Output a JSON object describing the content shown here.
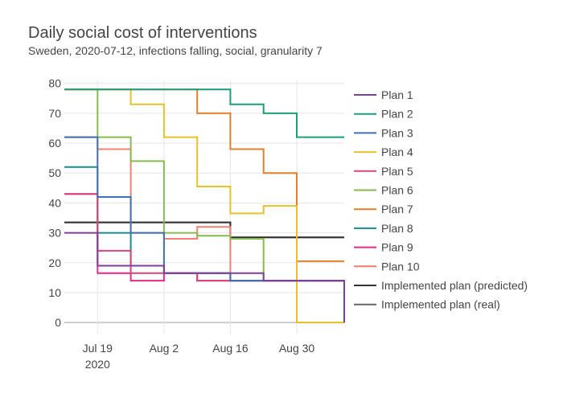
{
  "chart_data": {
    "type": "line",
    "line_shape": "step",
    "title": "Daily social cost of interventions",
    "subtitle": "Sweden, 2020-07-12, infections falling, social, granularity 7",
    "xlabel": "",
    "ylabel": "",
    "xlim": [
      "2020-07-12",
      "2020-09-09"
    ],
    "ylim": [
      -4,
      81
    ],
    "x_ticks": [
      {
        "date": "2020-07-19",
        "label": "Jul 19",
        "sublabel": "2020"
      },
      {
        "date": "2020-08-02",
        "label": "Aug 2",
        "sublabel": ""
      },
      {
        "date": "2020-08-16",
        "label": "Aug 16",
        "sublabel": ""
      },
      {
        "date": "2020-08-30",
        "label": "Aug 30",
        "sublabel": ""
      }
    ],
    "y_ticks": [
      0,
      10,
      20,
      30,
      40,
      50,
      60,
      70,
      80
    ],
    "grid": true,
    "legend_position": "right",
    "change_dates": [
      "2020-07-12",
      "2020-07-19",
      "2020-07-26",
      "2020-08-02",
      "2020-08-09",
      "2020-08-16",
      "2020-08-23",
      "2020-08-30",
      "2020-09-09"
    ],
    "series": [
      {
        "name": "Plan 1",
        "color": "#7f3f98",
        "values": [
          30,
          19,
          19,
          16.5,
          16.5,
          16.5,
          14,
          14,
          0
        ]
      },
      {
        "name": "Plan 2",
        "color": "#1b9e77",
        "values": [
          78,
          78,
          78,
          78,
          78,
          73,
          70,
          62,
          62
        ]
      },
      {
        "name": "Plan 3",
        "color": "#3f6fb5",
        "values": [
          62,
          42,
          30,
          16.5,
          16.5,
          14,
          14,
          14,
          0
        ]
      },
      {
        "name": "Plan 4",
        "color": "#e6c229",
        "values": [
          78,
          78,
          73,
          62,
          45.5,
          36.5,
          39,
          0,
          0
        ]
      },
      {
        "name": "Plan 5",
        "color": "#d6457a",
        "values": [
          43,
          24,
          16.5,
          16.5,
          14,
          14,
          14,
          14,
          0
        ]
      },
      {
        "name": "Plan 6",
        "color": "#86bc4e",
        "values": [
          78,
          62,
          54,
          30,
          29,
          28,
          14,
          14,
          0
        ]
      },
      {
        "name": "Plan 7",
        "color": "#e0802c",
        "values": [
          78,
          78,
          78,
          78,
          70,
          58,
          50,
          20.5,
          20.5
        ]
      },
      {
        "name": "Plan 8",
        "color": "#1a8c8c",
        "values": [
          52,
          30,
          19,
          16.5,
          16.5,
          14,
          14,
          14,
          0
        ]
      },
      {
        "name": "Plan 9",
        "color": "#e7298a",
        "values": [
          43,
          16.5,
          14,
          16.5,
          14,
          14,
          14,
          14,
          0
        ]
      },
      {
        "name": "Plan 10",
        "color": "#f47f72",
        "values": [
          62,
          58,
          30,
          28,
          32,
          14,
          14,
          14,
          0
        ]
      },
      {
        "name": "Implemented plan (predicted)",
        "color": "#333333",
        "values": [
          33.5,
          33.5,
          33.5,
          33.5,
          33.5,
          28.5,
          28.5,
          28.5,
          28.5
        ]
      },
      {
        "name": "Implemented plan (real)",
        "color": "#666666",
        "values": [
          33.5,
          33.5,
          33.5,
          33.5,
          33.5,
          28.5,
          28.5,
          28.5,
          28.5
        ]
      }
    ]
  },
  "colors": {
    "background": "#ffffff",
    "grid": "#e6e6e6",
    "zero_line": "#cccccc",
    "text": "#444444"
  }
}
